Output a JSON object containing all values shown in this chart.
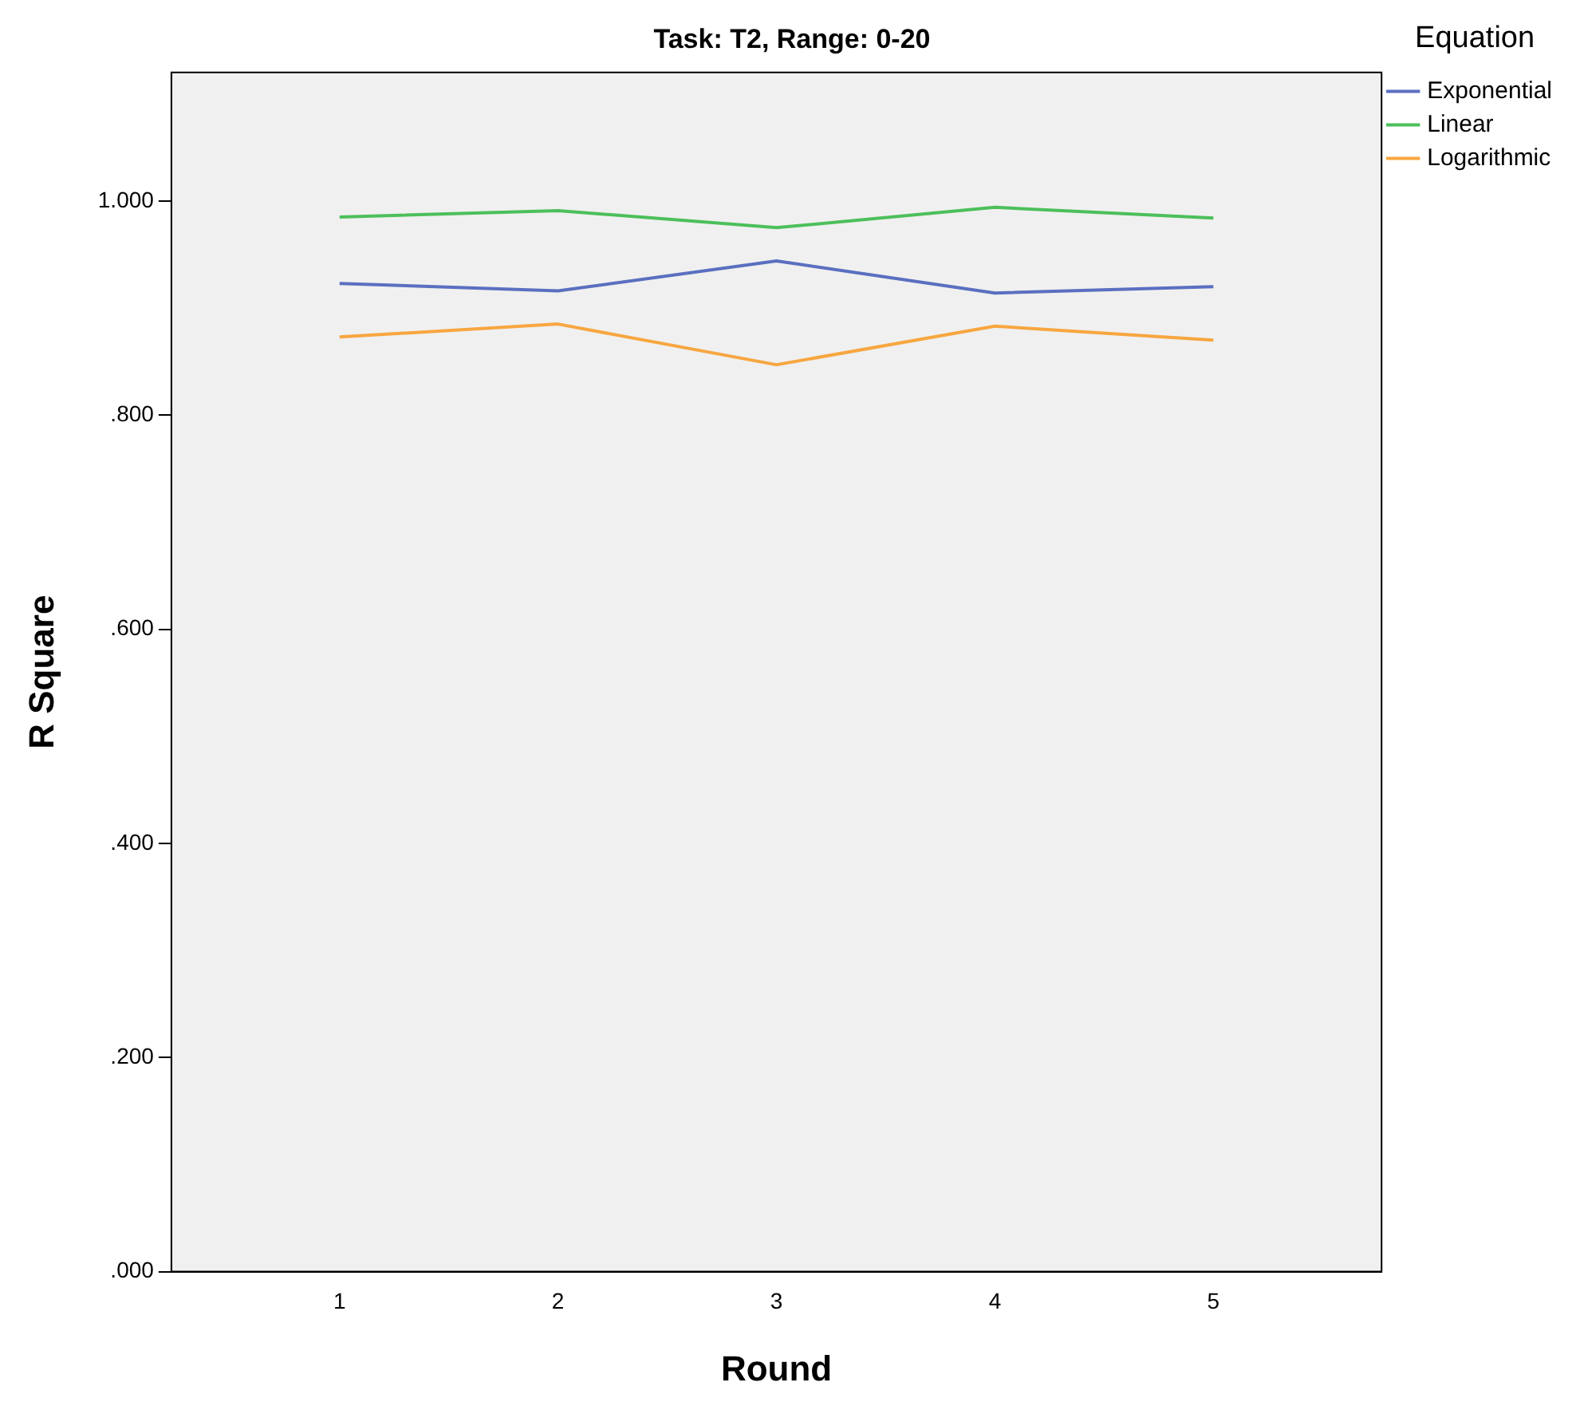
{
  "chart_data": {
    "type": "line",
    "title": "Task: T2, Range: 0-20",
    "xlabel": "Round",
    "ylabel": "R Square",
    "legend_title": "Equation",
    "x": [
      1,
      2,
      3,
      4,
      5
    ],
    "xlim": [
      0.23,
      5.77
    ],
    "xticks": [
      1,
      2,
      3,
      4,
      5
    ],
    "ylim": [
      0,
      1.12
    ],
    "yticks": [
      {
        "value": 0,
        "label": ".000"
      },
      {
        "value": 0.2,
        "label": ".200"
      },
      {
        "value": 0.4,
        "label": ".400"
      },
      {
        "value": 0.6,
        "label": ".600"
      },
      {
        "value": 0.8,
        "label": ".800"
      },
      {
        "value": 1,
        "label": "1.000"
      }
    ],
    "grid": false,
    "legend": "top right",
    "marker": "none",
    "line_style": "solid",
    "series": [
      {
        "name": "Exponential",
        "color": "#5a6fc0",
        "values": [
          0.923,
          0.916,
          0.944,
          0.914,
          0.92
        ]
      },
      {
        "name": "Linear",
        "color": "#4cbf5a",
        "values": [
          0.985,
          0.991,
          0.975,
          0.994,
          0.984
        ]
      },
      {
        "name": "Logarithmic",
        "color": "#f7a640",
        "values": [
          0.873,
          0.885,
          0.847,
          0.883,
          0.87
        ]
      }
    ]
  }
}
